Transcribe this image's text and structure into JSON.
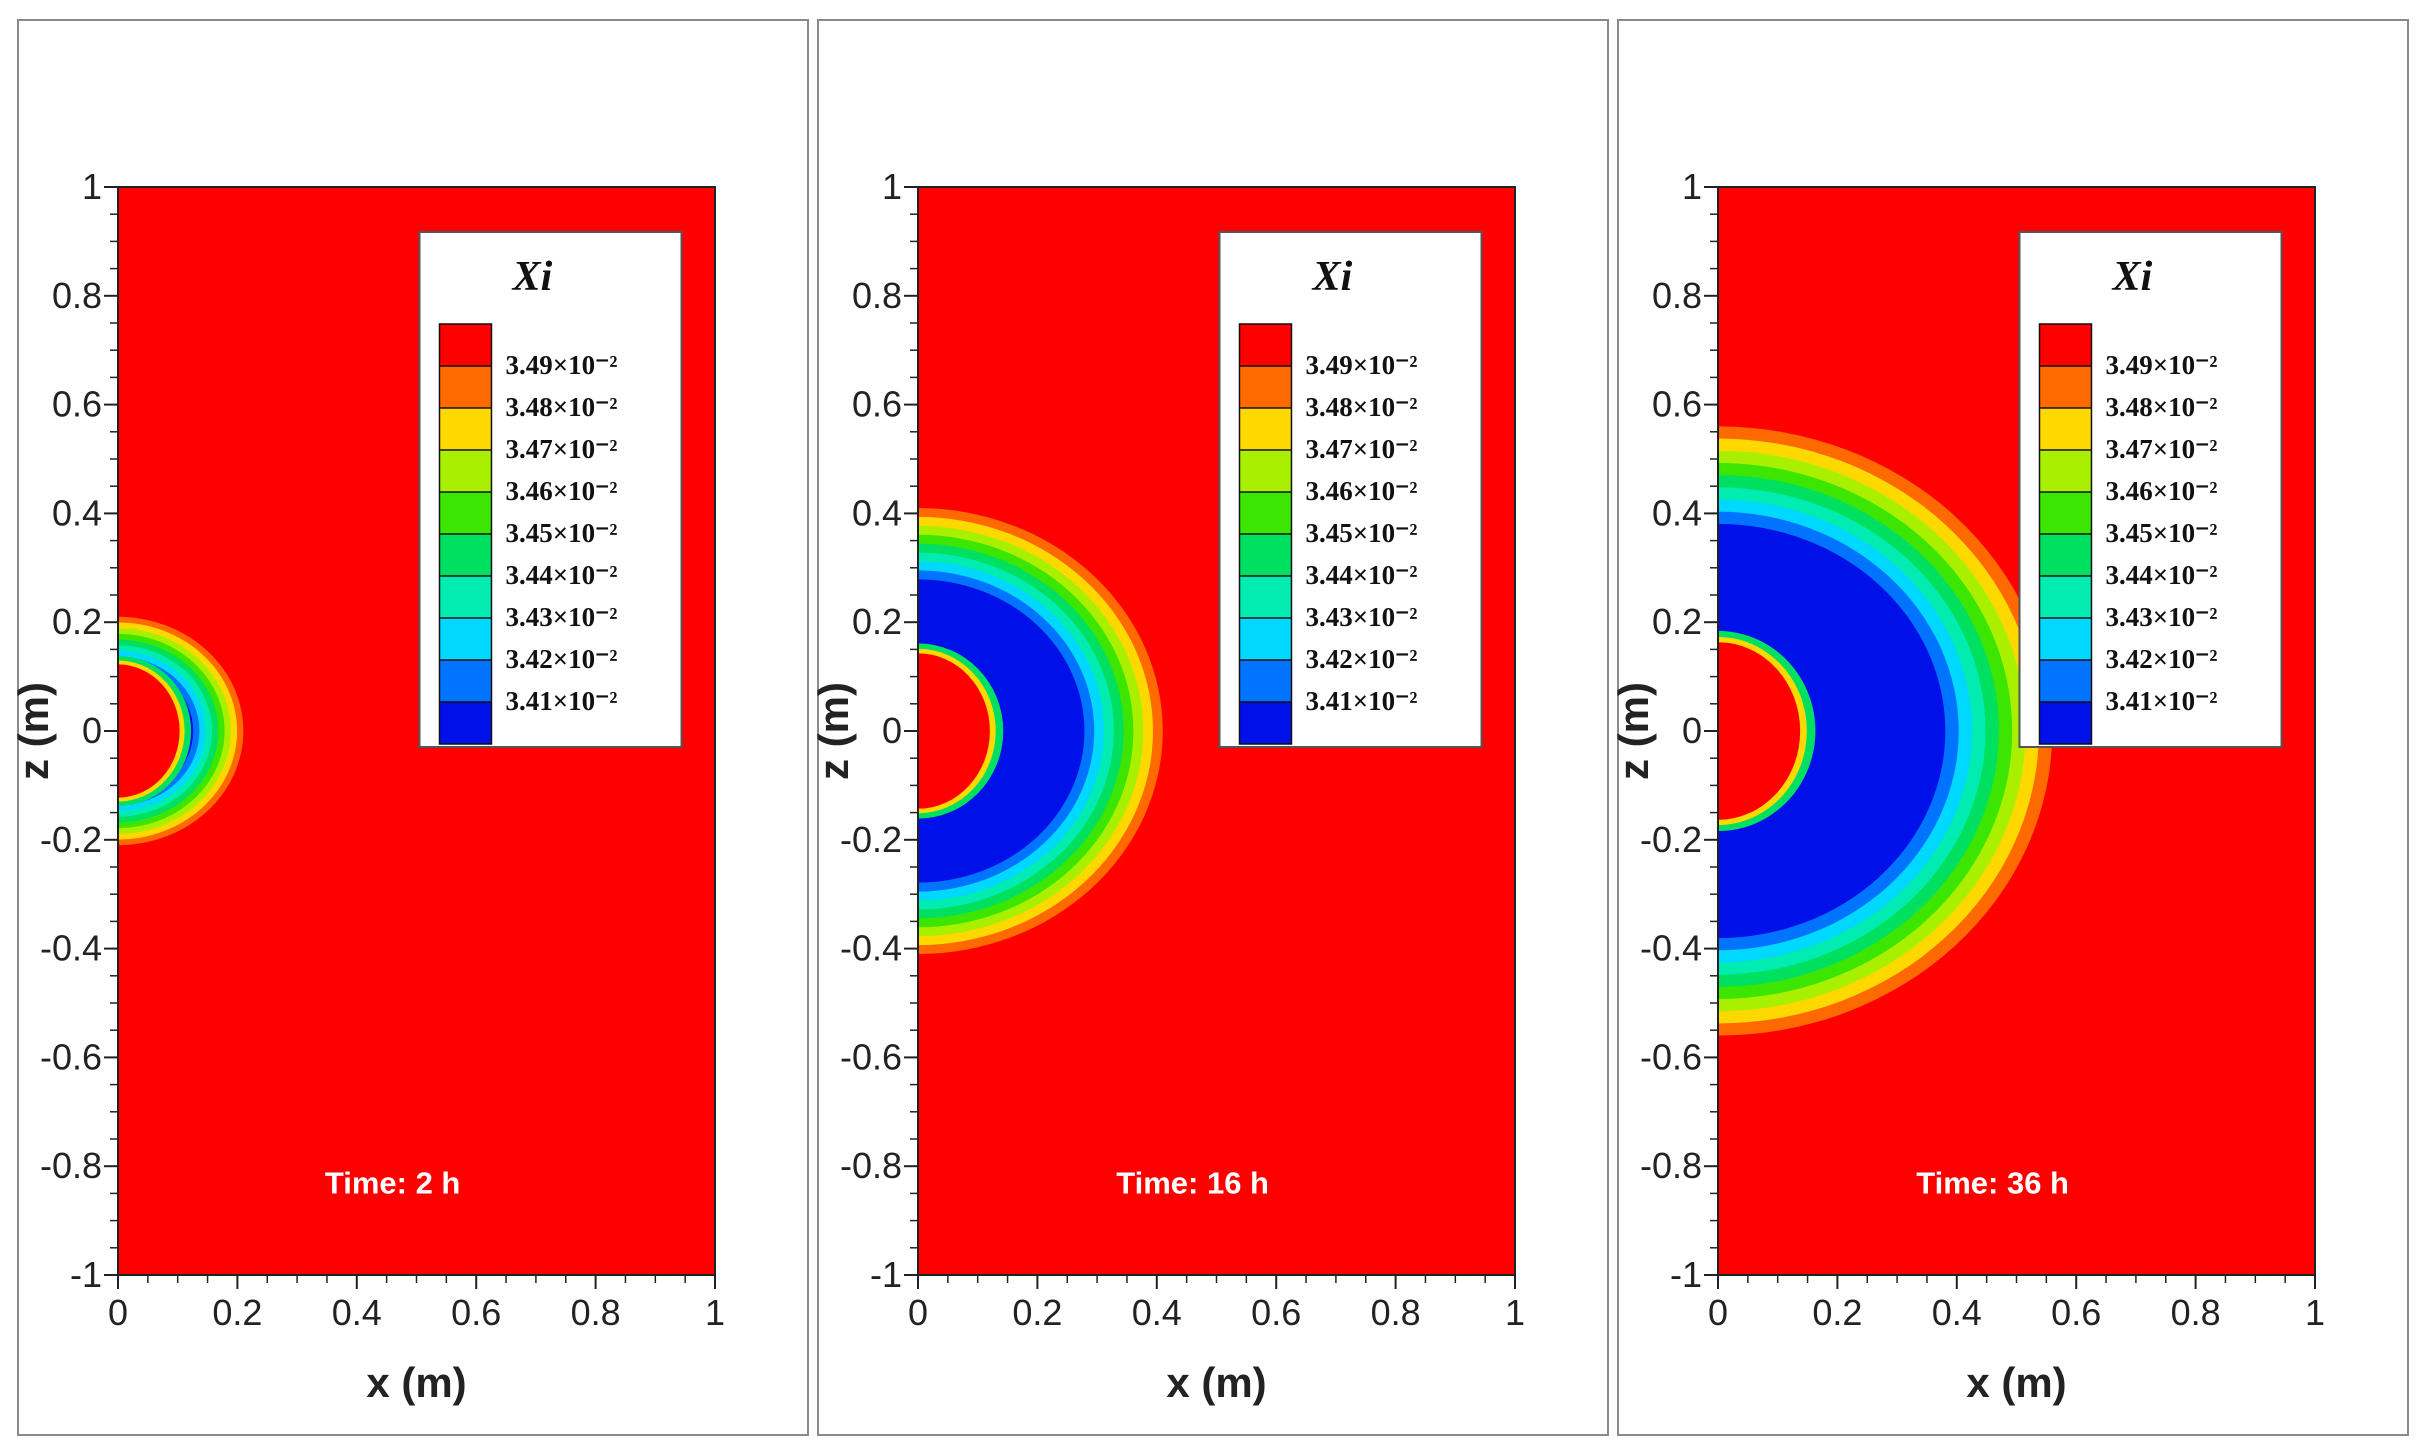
{
  "chart_data": [
    {
      "type": "contour",
      "panel": "left",
      "time_label": "Time: 2 h",
      "xlabel": "x (m)",
      "ylabel": "z (m)",
      "xlim": [
        0,
        1
      ],
      "ylim": [
        -1,
        1
      ],
      "x_ticks": [
        "0",
        "0.2",
        "0.4",
        "0.6",
        "0.8",
        "1"
      ],
      "y_ticks": [
        "1",
        "0.8",
        "0.6",
        "0.4",
        "0.2",
        "0",
        "-0.2",
        "-0.4",
        "-0.6",
        "-0.8",
        "-1"
      ],
      "legend_title": "Xi",
      "contour_outer_radius_m": 0.21,
      "contour_inner_core_radius_m": 0.12
    },
    {
      "type": "contour",
      "panel": "middle",
      "time_label": "Time: 16 h",
      "xlabel": "x (m)",
      "ylabel": "z (m)",
      "xlim": [
        0,
        1
      ],
      "ylim": [
        -1,
        1
      ],
      "x_ticks": [
        "0",
        "0.2",
        "0.4",
        "0.6",
        "0.8",
        "1"
      ],
      "y_ticks": [
        "1",
        "0.8",
        "0.6",
        "0.4",
        "0.2",
        "0",
        "-0.2",
        "-0.4",
        "-0.6",
        "-0.8",
        "-1"
      ],
      "legend_title": "Xi",
      "contour_outer_radius_m": 0.41,
      "contour_inner_core_radius_m": 0.14
    },
    {
      "type": "contour",
      "panel": "right",
      "time_label": "Time: 36 h",
      "xlabel": "x (m)",
      "ylabel": "z (m)",
      "xlim": [
        0,
        1
      ],
      "ylim": [
        -1,
        1
      ],
      "x_ticks": [
        "0",
        "0.2",
        "0.4",
        "0.6",
        "0.8",
        "1"
      ],
      "y_ticks": [
        "1",
        "0.8",
        "0.6",
        "0.4",
        "0.2",
        "0",
        "-0.2",
        "-0.4",
        "-0.6",
        "-0.8",
        "-1"
      ],
      "legend_title": "Xi",
      "contour_outer_radius_m": 0.56,
      "contour_inner_core_radius_m": 0.16
    }
  ],
  "legend": {
    "title": "Xi",
    "levels": [
      {
        "label": "3.49×10⁻²",
        "color": "#ff0000"
      },
      {
        "label": "3.48×10⁻²",
        "color": "#ff6a00"
      },
      {
        "label": "3.47×10⁻²",
        "color": "#ffd800"
      },
      {
        "label": "3.46×10⁻²",
        "color": "#a8f000"
      },
      {
        "label": "3.45×10⁻²",
        "color": "#3ce600"
      },
      {
        "label": "3.44×10⁻²",
        "color": "#00e060"
      },
      {
        "label": "3.43×10⁻²",
        "color": "#00ecb0"
      },
      {
        "label": "3.42×10⁻²",
        "color": "#00d8ff"
      },
      {
        "label": "3.41×10⁻²",
        "color": "#0074ff"
      },
      {
        "label": "",
        "color": "#0010e8"
      }
    ]
  },
  "colors": {
    "background_field": "#ff0000",
    "frame": "#8a8a8a",
    "text": "#222222"
  }
}
